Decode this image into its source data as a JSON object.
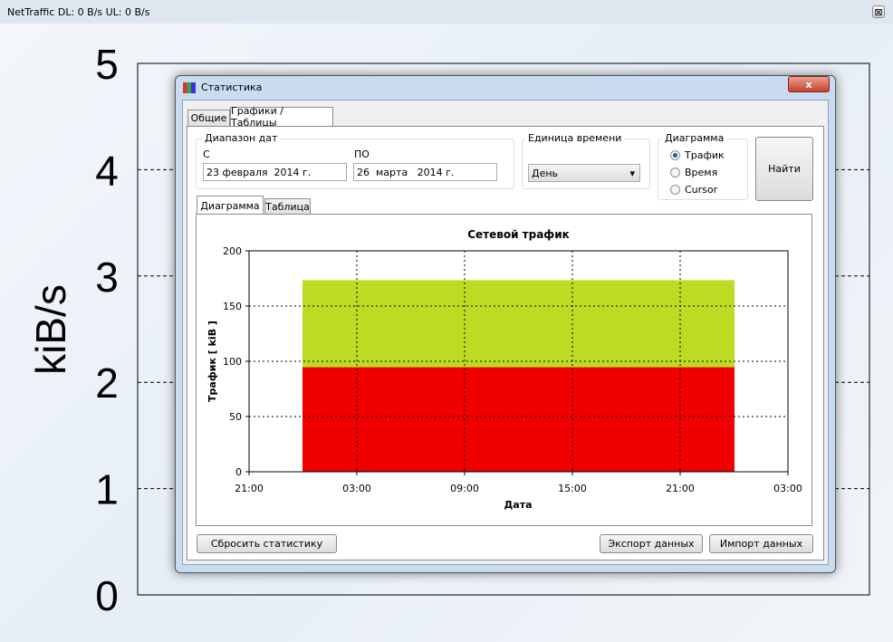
{
  "window": {
    "title": "NetTraffic DL: 0 B/s UL: 0 B/s"
  },
  "background_chart": {
    "type": "area",
    "y_label": "kiB/s",
    "ylim": [
      0,
      5
    ],
    "yticks": [
      0,
      1,
      2,
      3,
      4,
      5
    ],
    "grid": true
  },
  "dialog": {
    "title": "Статистика",
    "tabs": [
      "Общие",
      "Графики / Таблицы"
    ],
    "date_range": {
      "label": "Диапазон дат",
      "from_label": "С",
      "from": "23 февраля  2014 г.",
      "to_label": "ПО",
      "to": "26  марта   2014 г."
    },
    "time_unit": {
      "label": "Единица времени",
      "value": "День"
    },
    "diagram": {
      "label": "Диаграмма",
      "options": [
        "Трафик",
        "Время",
        "Cursor"
      ],
      "selected": 0
    },
    "find_button": "Найти",
    "view_tabs": [
      "Диаграмма",
      "Таблица"
    ],
    "buttons": {
      "reset": "Сбросить статистику",
      "export": "Экспорт данных",
      "import": "Импорт данных"
    }
  },
  "chart_data": {
    "type": "histogram",
    "title": "Сетевой трафик",
    "x_label": "Дата",
    "y_label": "Трафик [ kiB ]",
    "bins": [
      24,
      48
    ],
    "series": [
      {
        "color": "#f00000",
        "values": [
          95
        ]
      },
      {
        "color": "#bcdc24",
        "values": [
          78
        ]
      }
    ],
    "xlim": [
      21,
      51
    ],
    "xticks": [
      {
        "value": 21,
        "label": "21:00"
      },
      {
        "value": 27,
        "label": "03:00"
      },
      {
        "value": 33,
        "label": "09:00"
      },
      {
        "value": 39,
        "label": "15:00"
      },
      {
        "value": 45,
        "label": "21:00"
      },
      {
        "value": 51,
        "label": "03:00"
      }
    ],
    "ylim": [
      0,
      200
    ],
    "yticks": [
      0,
      50,
      100,
      150,
      200
    ],
    "grid": true
  }
}
